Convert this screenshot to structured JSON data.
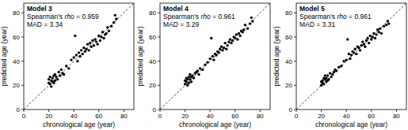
{
  "chart_data": [
    {
      "type": "scatter",
      "title": "Model 3",
      "annotations": [
        [
          "Spearman's ",
          "rho",
          " = 0.959"
        ],
        [
          "MAD = 3.34"
        ]
      ],
      "x_label": "chronological age (year)",
      "y_label": "predicted age (year)",
      "xlim": [
        0,
        88
      ],
      "ylim": [
        0,
        88
      ],
      "xticks": [
        0,
        20,
        40,
        60,
        80
      ],
      "yticks": [
        0,
        20,
        40,
        60,
        80
      ],
      "color": "#000000",
      "marker": "circle",
      "x": [
        20,
        20,
        21,
        21,
        22,
        22,
        23,
        23,
        24,
        24,
        25,
        25,
        26,
        27,
        28,
        29,
        30,
        31,
        32,
        34,
        36,
        38,
        40,
        41,
        42,
        43,
        44,
        45,
        46,
        47,
        48,
        49,
        50,
        51,
        52,
        53,
        54,
        55,
        56,
        57,
        58,
        59,
        60,
        61,
        62,
        63,
        64,
        65,
        66,
        67,
        68,
        70,
        72,
        73,
        74
      ],
      "values": [
        22,
        25,
        21,
        27,
        24,
        19,
        26,
        23,
        28,
        22,
        24,
        29,
        27,
        25,
        31,
        28,
        33,
        30,
        29,
        36,
        34,
        41,
        43,
        61,
        45,
        40,
        47,
        44,
        49,
        46,
        51,
        48,
        50,
        54,
        49,
        55,
        52,
        57,
        53,
        58,
        56,
        54,
        61,
        57,
        60,
        64,
        59,
        62,
        63,
        68,
        65,
        69,
        72,
        78,
        75
      ]
    },
    {
      "type": "scatter",
      "title": "Model 4",
      "annotations": [
        [
          "Spearman's ",
          "rho",
          " = 0.961"
        ],
        [
          "MAD = 3.29"
        ]
      ],
      "x_label": "chronological age (year)",
      "y_label": "predicted age (year)",
      "xlim": [
        0,
        88
      ],
      "ylim": [
        0,
        88
      ],
      "xticks": [
        0,
        20,
        40,
        60,
        80
      ],
      "yticks": [
        0,
        20,
        40,
        60,
        80
      ],
      "color": "#000000",
      "marker": "circle",
      "x": [
        20,
        20,
        21,
        21,
        22,
        22,
        23,
        23,
        24,
        24,
        25,
        25,
        26,
        27,
        28,
        29,
        30,
        31,
        32,
        34,
        36,
        38,
        40,
        41,
        42,
        43,
        44,
        45,
        46,
        47,
        48,
        49,
        50,
        51,
        52,
        53,
        54,
        55,
        56,
        57,
        58,
        59,
        60,
        61,
        62,
        63,
        64,
        65,
        66,
        67,
        68,
        70,
        72,
        73,
        74
      ],
      "values": [
        21,
        24,
        23,
        26,
        20,
        25,
        27,
        22,
        25,
        29,
        23,
        27,
        28,
        26,
        30,
        31,
        32,
        29,
        34,
        33,
        37,
        39,
        42,
        59,
        44,
        41,
        46,
        45,
        48,
        47,
        50,
        52,
        49,
        51,
        55,
        50,
        53,
        56,
        58,
        55,
        57,
        60,
        59,
        62,
        58,
        63,
        61,
        65,
        64,
        66,
        70,
        67,
        71,
        76,
        73
      ]
    },
    {
      "type": "scatter",
      "title": "Model 5",
      "annotations": [
        [
          "Spearman's ",
          "rho",
          " = 0.961"
        ],
        [
          "MAD = 3.31"
        ]
      ],
      "x_label": "chronological age (year)",
      "y_label": "predicted age (year)",
      "xlim": [
        0,
        88
      ],
      "ylim": [
        0,
        88
      ],
      "xticks": [
        0,
        20,
        40,
        60,
        80
      ],
      "yticks": [
        0,
        20,
        40,
        60,
        80
      ],
      "color": "#000000",
      "marker": "circle",
      "x": [
        20,
        20,
        21,
        21,
        22,
        22,
        23,
        23,
        24,
        24,
        25,
        25,
        26,
        27,
        28,
        29,
        30,
        31,
        32,
        34,
        36,
        38,
        40,
        41,
        42,
        43,
        44,
        45,
        46,
        47,
        48,
        49,
        50,
        51,
        52,
        53,
        54,
        55,
        56,
        57,
        58,
        59,
        60,
        61,
        62,
        63,
        64,
        65,
        66,
        67,
        68,
        70,
        72,
        73,
        74
      ],
      "values": [
        20,
        23,
        24,
        22,
        26,
        21,
        25,
        28,
        23,
        26,
        24,
        28,
        25,
        30,
        27,
        29,
        31,
        33,
        32,
        35,
        36,
        40,
        41,
        58,
        46,
        42,
        45,
        48,
        47,
        50,
        46,
        52,
        51,
        49,
        53,
        56,
        54,
        52,
        57,
        59,
        55,
        61,
        58,
        60,
        63,
        59,
        62,
        66,
        64,
        67,
        63,
        69,
        70,
        73,
        71
      ]
    }
  ]
}
